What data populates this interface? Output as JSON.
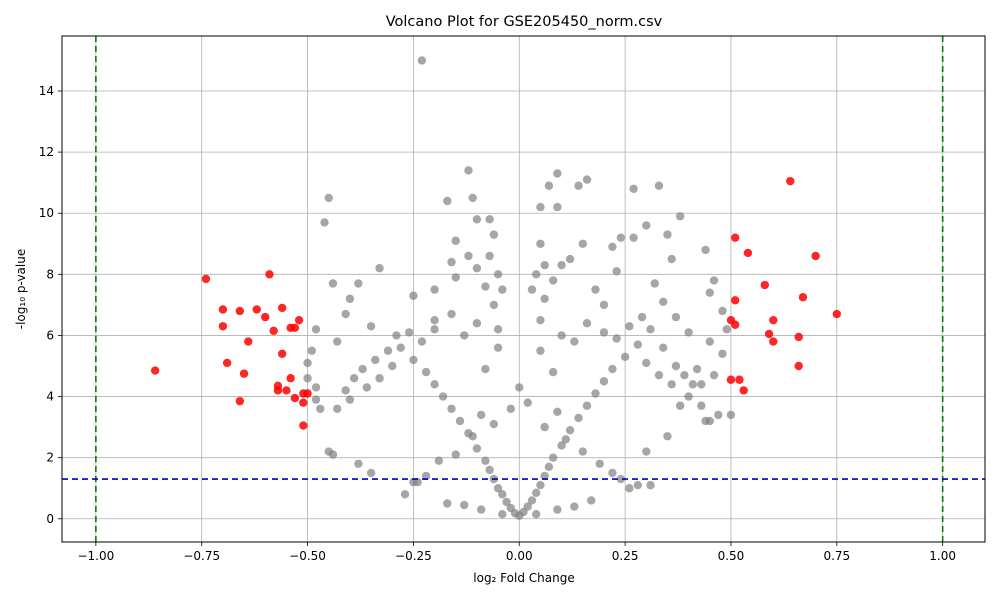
{
  "chart_data": {
    "type": "scatter",
    "title": "Volcano Plot for GSE205450_norm.csv",
    "xlabel": "log₂ Fold Change",
    "ylabel": "-log₁₀ p-value",
    "xlim": [
      -1.08,
      1.1
    ],
    "ylim": [
      -0.76,
      15.8
    ],
    "xticks": [
      -1.0,
      -0.75,
      -0.5,
      -0.25,
      0.0,
      0.25,
      0.5,
      0.75,
      1.0
    ],
    "xtick_labels": [
      "−1.00",
      "−0.75",
      "−0.50",
      "−0.25",
      "0.00",
      "0.25",
      "0.50",
      "0.75",
      "1.00"
    ],
    "yticks": [
      0,
      2,
      4,
      6,
      8,
      10,
      12,
      14
    ],
    "ytick_labels": [
      "0",
      "2",
      "4",
      "6",
      "8",
      "10",
      "12",
      "14"
    ],
    "grid": true,
    "threshold_lines": {
      "fold_change": [
        -1.0,
        1.0
      ],
      "fold_change_color": "#008000",
      "pvalue": 1.301,
      "pvalue_color": "#0000cc"
    },
    "colors": {
      "not_significant": "#808080",
      "significant": "#ff0000"
    },
    "series": [
      {
        "points": [
          [
            0.0,
            0.1
          ],
          [
            -0.01,
            0.18
          ],
          [
            0.01,
            0.22
          ],
          [
            -0.02,
            0.35
          ],
          [
            0.02,
            0.4
          ],
          [
            -0.03,
            0.55
          ],
          [
            0.03,
            0.6
          ],
          [
            -0.04,
            0.8
          ],
          [
            0.04,
            0.85
          ],
          [
            -0.05,
            1.0
          ],
          [
            0.05,
            1.1
          ],
          [
            -0.06,
            1.3
          ],
          [
            0.06,
            1.4
          ],
          [
            -0.07,
            1.6
          ],
          [
            0.07,
            1.7
          ],
          [
            -0.08,
            1.9
          ],
          [
            0.08,
            2.0
          ],
          [
            -0.1,
            2.3
          ],
          [
            0.1,
            2.4
          ],
          [
            -0.12,
            2.8
          ],
          [
            0.12,
            2.9
          ],
          [
            -0.14,
            3.2
          ],
          [
            0.14,
            3.3
          ],
          [
            -0.16,
            3.6
          ],
          [
            0.16,
            3.7
          ],
          [
            -0.18,
            4.0
          ],
          [
            0.18,
            4.1
          ],
          [
            -0.2,
            4.4
          ],
          [
            0.2,
            4.5
          ],
          [
            -0.22,
            4.8
          ],
          [
            0.22,
            4.9
          ],
          [
            -0.25,
            5.2
          ],
          [
            0.25,
            5.3
          ],
          [
            -0.28,
            5.6
          ],
          [
            0.28,
            5.7
          ],
          [
            -0.3,
            5.0
          ],
          [
            0.3,
            5.1
          ],
          [
            -0.33,
            4.6
          ],
          [
            0.33,
            4.7
          ],
          [
            -0.36,
            4.3
          ],
          [
            0.36,
            4.4
          ],
          [
            -0.4,
            3.9
          ],
          [
            0.4,
            4.0
          ],
          [
            -0.43,
            3.6
          ],
          [
            0.43,
            3.7
          ],
          [
            -0.45,
            2.2
          ],
          [
            0.45,
            3.2
          ],
          [
            -0.47,
            3.6
          ],
          [
            0.47,
            3.4
          ],
          [
            -0.05,
            6.2
          ],
          [
            0.05,
            6.5
          ],
          [
            -0.06,
            7.0
          ],
          [
            0.06,
            7.2
          ],
          [
            -0.08,
            7.6
          ],
          [
            0.08,
            7.8
          ],
          [
            -0.1,
            8.2
          ],
          [
            0.1,
            8.3
          ],
          [
            -0.12,
            8.6
          ],
          [
            0.12,
            8.5
          ],
          [
            -0.15,
            9.1
          ],
          [
            0.15,
            9.0
          ],
          [
            -0.1,
            9.8
          ],
          [
            0.05,
            10.2
          ],
          [
            -0.07,
            9.8
          ],
          [
            0.09,
            10.2
          ],
          [
            -0.12,
            11.4
          ],
          [
            0.09,
            11.3
          ],
          [
            0.16,
            11.1
          ],
          [
            -0.23,
            15.0
          ],
          [
            0.07,
            10.9
          ],
          [
            0.14,
            10.9
          ],
          [
            0.27,
            10.8
          ],
          [
            0.33,
            10.9
          ],
          [
            0.38,
            9.9
          ],
          [
            -0.45,
            10.5
          ],
          [
            -0.46,
            9.7
          ],
          [
            -0.11,
            10.5
          ],
          [
            -0.17,
            10.4
          ],
          [
            0.3,
            9.6
          ],
          [
            0.35,
            9.3
          ],
          [
            -0.33,
            8.2
          ],
          [
            -0.25,
            7.3
          ],
          [
            -0.35,
            6.3
          ],
          [
            -0.4,
            7.2
          ],
          [
            -0.44,
            7.7
          ],
          [
            0.44,
            8.8
          ],
          [
            0.45,
            7.4
          ],
          [
            0.46,
            7.8
          ],
          [
            0.48,
            6.8
          ],
          [
            0.49,
            6.2
          ],
          [
            0.48,
            5.4
          ],
          [
            0.45,
            5.8
          ],
          [
            0.4,
            6.1
          ],
          [
            0.42,
            4.9
          ],
          [
            0.43,
            4.4
          ],
          [
            0.46,
            4.7
          ],
          [
            0.5,
            3.4
          ],
          [
            0.44,
            3.2
          ],
          [
            0.38,
            3.7
          ],
          [
            0.35,
            2.7
          ],
          [
            0.3,
            2.2
          ],
          [
            0.28,
            1.1
          ],
          [
            0.26,
            1.0
          ],
          [
            0.31,
            1.1
          ],
          [
            -0.27,
            0.8
          ],
          [
            -0.25,
            1.2
          ],
          [
            -0.35,
            1.5
          ],
          [
            -0.38,
            1.8
          ],
          [
            -0.44,
            2.1
          ],
          [
            -0.48,
            3.9
          ],
          [
            -0.48,
            4.3
          ],
          [
            -0.5,
            4.6
          ],
          [
            -0.5,
            5.1
          ],
          [
            -0.49,
            5.5
          ],
          [
            -0.48,
            6.2
          ],
          [
            -0.43,
            5.8
          ],
          [
            -0.41,
            6.7
          ],
          [
            -0.38,
            7.7
          ],
          [
            -0.2,
            6.5
          ],
          [
            -0.2,
            7.5
          ],
          [
            -0.15,
            7.9
          ],
          [
            -0.16,
            8.4
          ],
          [
            0.22,
            8.9
          ],
          [
            0.24,
            9.2
          ],
          [
            0.27,
            9.2
          ],
          [
            0.23,
            8.1
          ],
          [
            0.36,
            8.5
          ],
          [
            0.32,
            7.7
          ],
          [
            0.34,
            7.1
          ],
          [
            0.37,
            6.6
          ],
          [
            0.2,
            7.0
          ],
          [
            0.18,
            7.5
          ],
          [
            0.0,
            4.3
          ],
          [
            0.02,
            3.8
          ],
          [
            -0.02,
            3.6
          ],
          [
            0.05,
            5.5
          ],
          [
            -0.05,
            5.6
          ],
          [
            0.08,
            4.8
          ],
          [
            -0.08,
            4.9
          ],
          [
            0.1,
            6.0
          ],
          [
            -0.1,
            6.4
          ],
          [
            0.13,
            5.8
          ],
          [
            -0.13,
            6.0
          ],
          [
            0.16,
            6.4
          ],
          [
            -0.16,
            6.7
          ],
          [
            0.2,
            6.1
          ],
          [
            -0.2,
            6.2
          ],
          [
            0.23,
            5.9
          ],
          [
            -0.23,
            5.8
          ],
          [
            0.26,
            6.3
          ],
          [
            -0.26,
            6.1
          ],
          [
            0.29,
            6.6
          ],
          [
            -0.29,
            6.0
          ],
          [
            0.31,
            6.2
          ],
          [
            -0.31,
            5.5
          ],
          [
            0.34,
            5.6
          ],
          [
            -0.34,
            5.2
          ],
          [
            0.37,
            5.0
          ],
          [
            -0.37,
            4.9
          ],
          [
            0.39,
            4.7
          ],
          [
            -0.39,
            4.6
          ],
          [
            0.41,
            4.4
          ],
          [
            -0.41,
            4.2
          ],
          [
            0.06,
            3.0
          ],
          [
            -0.06,
            3.1
          ],
          [
            0.09,
            3.5
          ],
          [
            -0.09,
            3.4
          ],
          [
            0.11,
            2.6
          ],
          [
            -0.11,
            2.7
          ],
          [
            0.15,
            2.2
          ],
          [
            -0.15,
            2.1
          ],
          [
            0.19,
            1.8
          ],
          [
            -0.19,
            1.9
          ],
          [
            0.22,
            1.5
          ],
          [
            -0.22,
            1.4
          ],
          [
            0.24,
            1.3
          ],
          [
            -0.24,
            1.2
          ],
          [
            0.17,
            0.6
          ],
          [
            -0.17,
            0.5
          ],
          [
            0.13,
            0.4
          ],
          [
            -0.13,
            0.45
          ],
          [
            0.09,
            0.3
          ],
          [
            -0.09,
            0.3
          ],
          [
            0.04,
            0.15
          ],
          [
            -0.04,
            0.15
          ],
          [
            0.03,
            7.5
          ],
          [
            0.04,
            8.0
          ],
          [
            -0.04,
            7.5
          ],
          [
            -0.05,
            8.0
          ],
          [
            0.06,
            8.3
          ],
          [
            -0.07,
            8.6
          ],
          [
            0.05,
            9.0
          ],
          [
            -0.06,
            9.3
          ]
        ]
      },
      {
        "points": [
          [
            -0.86,
            4.85
          ],
          [
            -0.74,
            7.85
          ],
          [
            -0.7,
            6.85
          ],
          [
            -0.7,
            6.3
          ],
          [
            -0.69,
            5.1
          ],
          [
            -0.66,
            6.8
          ],
          [
            -0.66,
            3.85
          ],
          [
            -0.65,
            4.75
          ],
          [
            -0.64,
            5.8
          ],
          [
            -0.62,
            6.85
          ],
          [
            -0.6,
            6.6
          ],
          [
            -0.59,
            8.0
          ],
          [
            -0.58,
            6.15
          ],
          [
            -0.57,
            4.2
          ],
          [
            -0.57,
            4.35
          ],
          [
            -0.56,
            6.9
          ],
          [
            -0.56,
            5.4
          ],
          [
            -0.55,
            4.2
          ],
          [
            -0.54,
            6.25
          ],
          [
            -0.54,
            4.6
          ],
          [
            -0.53,
            6.25
          ],
          [
            -0.53,
            3.95
          ],
          [
            -0.52,
            6.5
          ],
          [
            -0.51,
            4.1
          ],
          [
            -0.51,
            3.05
          ],
          [
            -0.51,
            3.8
          ],
          [
            -0.5,
            4.1
          ],
          [
            0.5,
            6.5
          ],
          [
            0.5,
            4.55
          ],
          [
            0.51,
            7.15
          ],
          [
            0.51,
            6.35
          ],
          [
            0.51,
            9.2
          ],
          [
            0.52,
            4.55
          ],
          [
            0.53,
            4.2
          ],
          [
            0.54,
            8.7
          ],
          [
            0.58,
            7.65
          ],
          [
            0.59,
            6.05
          ],
          [
            0.6,
            5.8
          ],
          [
            0.6,
            6.5
          ],
          [
            0.64,
            11.05
          ],
          [
            0.66,
            5.0
          ],
          [
            0.66,
            5.95
          ],
          [
            0.67,
            7.25
          ],
          [
            0.7,
            8.6
          ],
          [
            0.75,
            6.7
          ]
        ]
      }
    ]
  }
}
